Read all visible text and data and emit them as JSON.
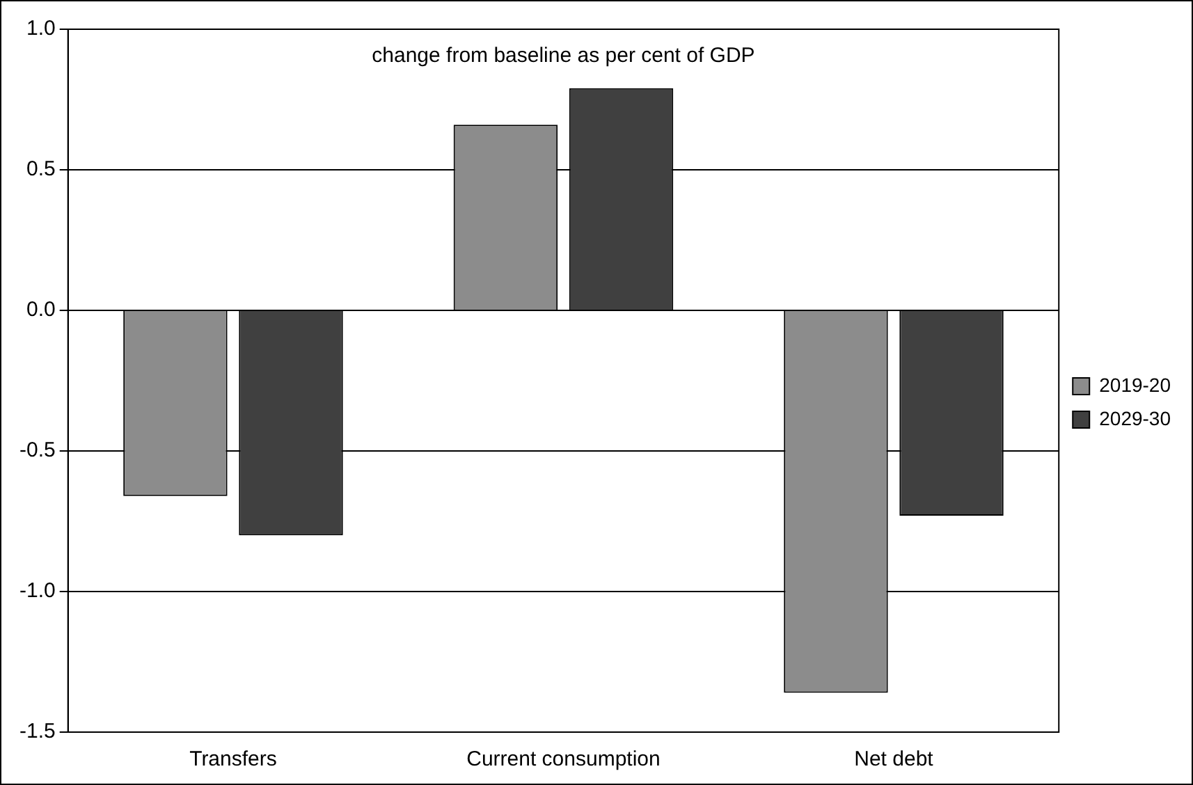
{
  "chart_data": {
    "type": "bar",
    "annotations": [
      "change from baseline as per cent of GDP"
    ],
    "categories": [
      "Transfers",
      "Current consumption",
      "Net debt"
    ],
    "series": [
      {
        "name": "2019-20",
        "color": "#8c8c8c",
        "values": [
          -0.66,
          0.66,
          -1.36
        ]
      },
      {
        "name": "2029-30",
        "color": "#404040",
        "values": [
          -0.8,
          0.79,
          -0.73
        ]
      }
    ],
    "ylim": [
      -1.5,
      1.0
    ],
    "yticks": [
      {
        "value": -1.5,
        "label": "-1.5"
      },
      {
        "value": -1,
        "label": "-1.0"
      },
      {
        "value": -0.5,
        "label": "-0.5"
      },
      {
        "value": 0,
        "label": "0.0"
      },
      {
        "value": 0.5,
        "label": "0.5"
      },
      {
        "value": 1,
        "label": "1.0"
      }
    ],
    "grid": "y",
    "legend": "right"
  }
}
